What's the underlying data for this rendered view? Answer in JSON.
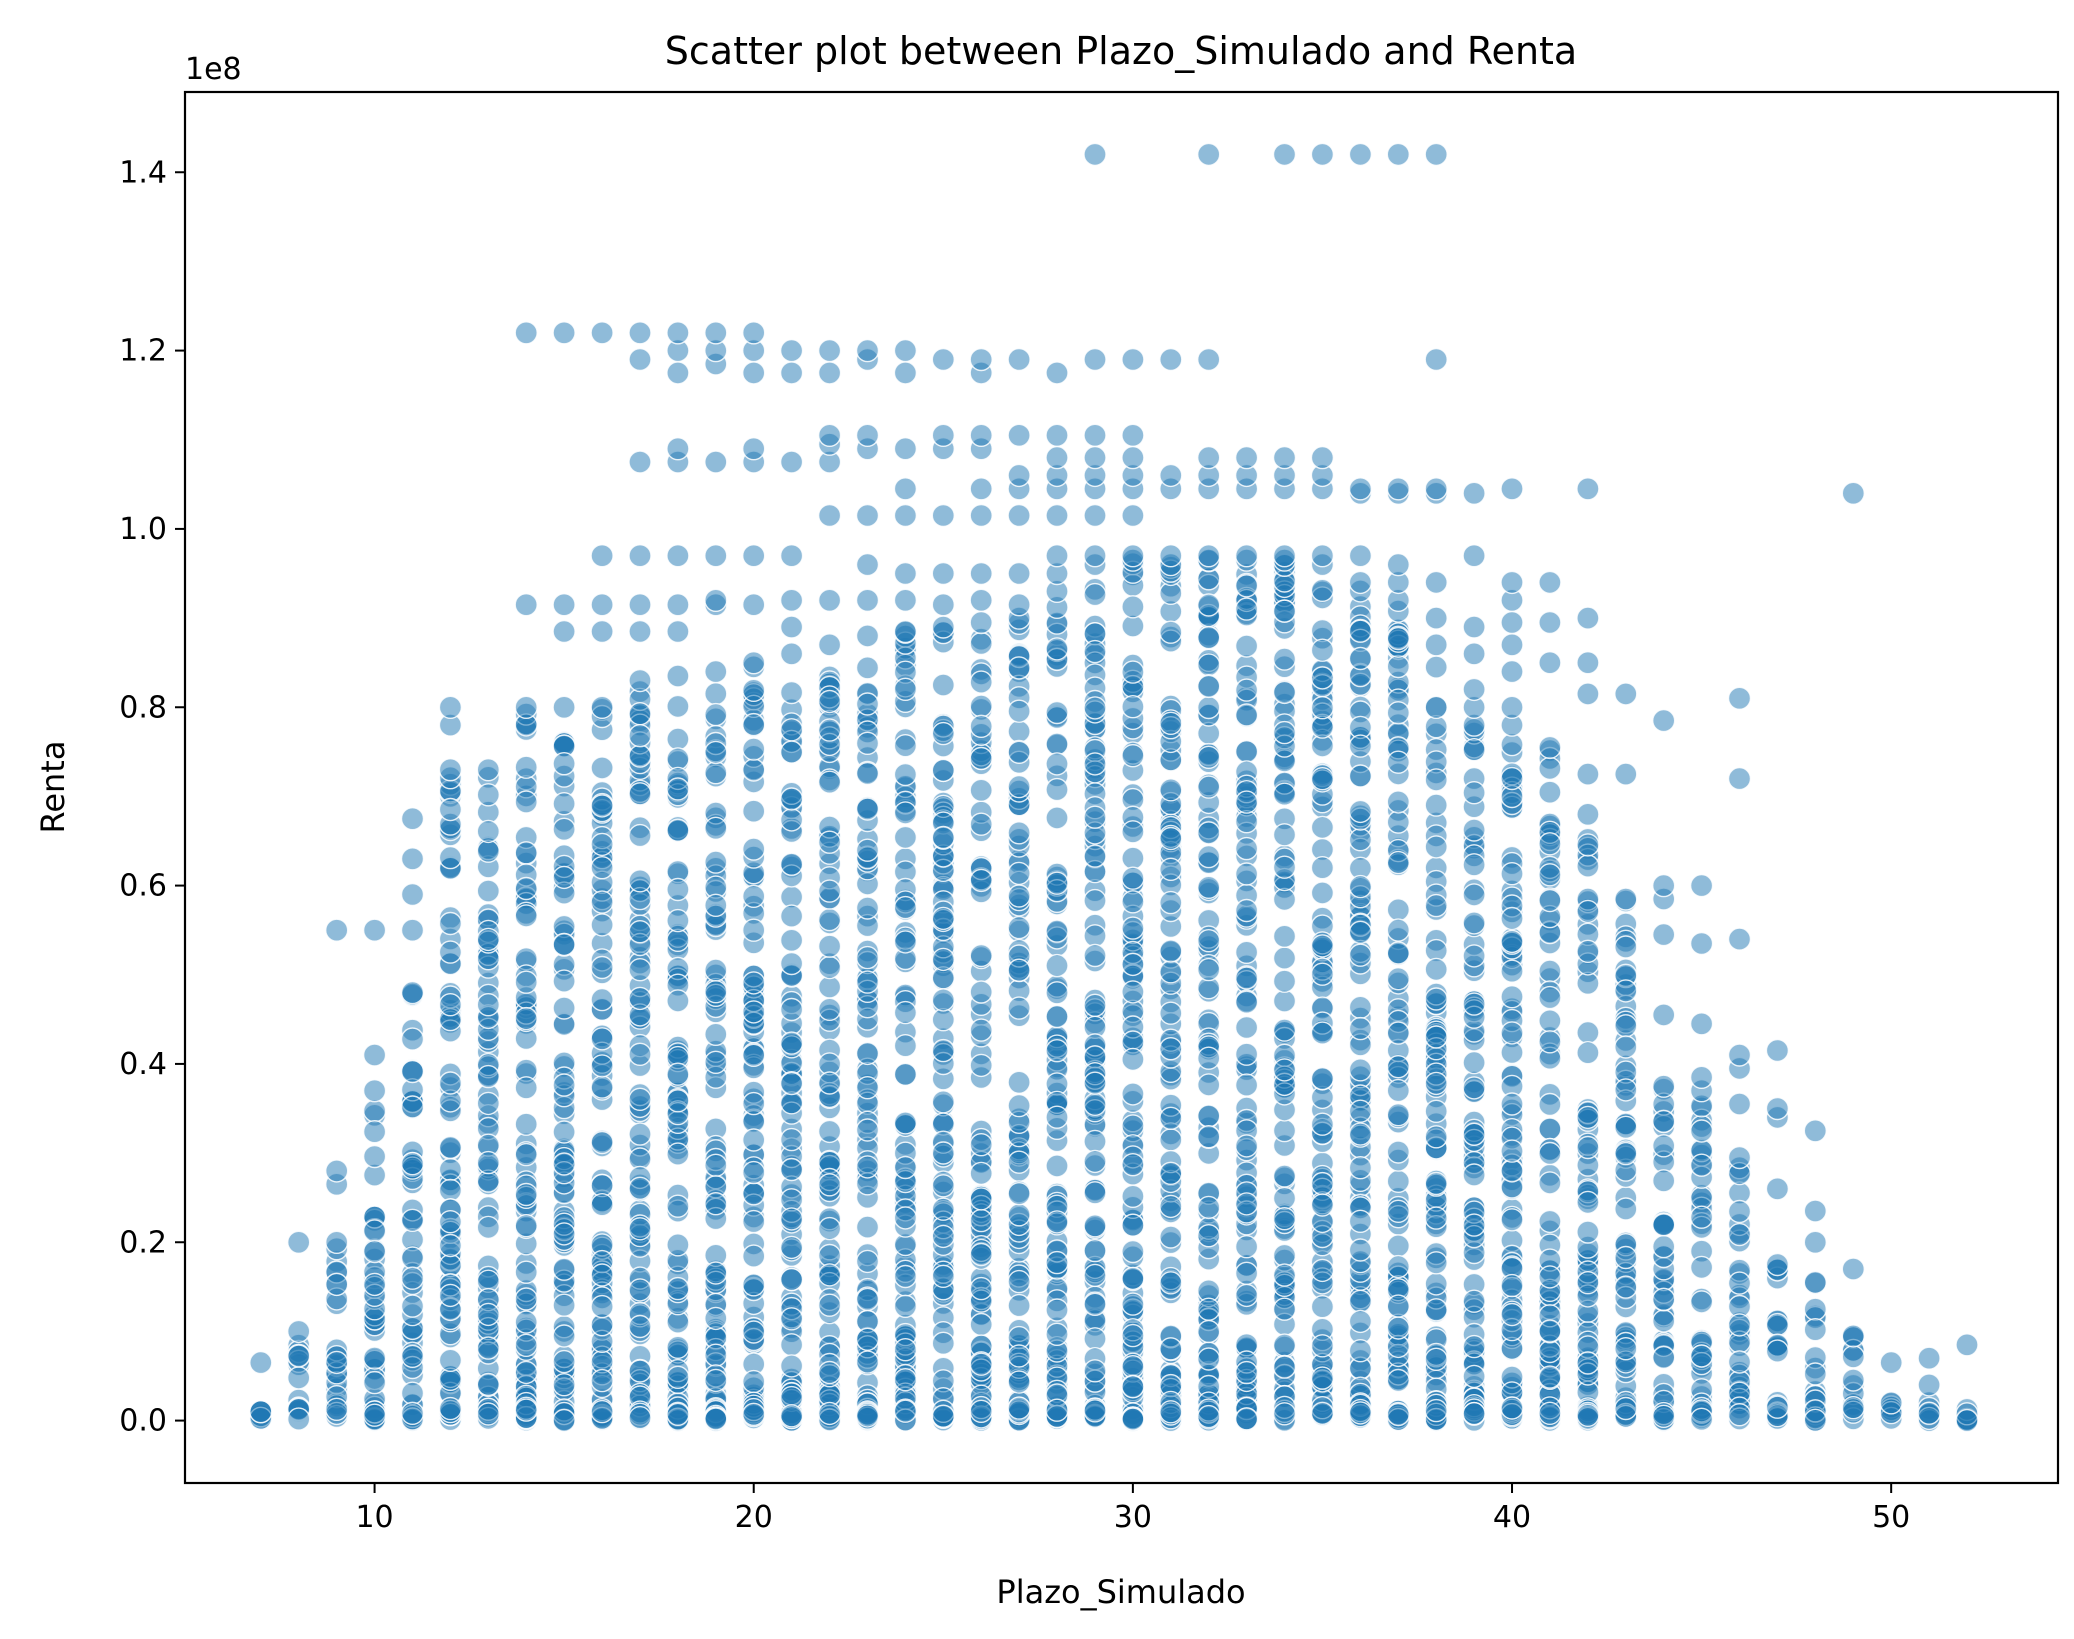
{
  "chart_data": {
    "type": "scatter",
    "title": "Scatter plot between Plazo_Simulado and Renta",
    "xlabel": "Plazo_Simulado",
    "ylabel": "Renta",
    "y_offset_label": "1e8",
    "xlim": [
      5,
      54.4
    ],
    "ylim": [
      -7000000,
      149000000
    ],
    "x_ticks": [
      10,
      20,
      30,
      40,
      50
    ],
    "x_tick_labels": [
      "10",
      "20",
      "30",
      "40",
      "50"
    ],
    "y_ticks": [
      0,
      20000000,
      40000000,
      60000000,
      80000000,
      100000000,
      120000000,
      140000000
    ],
    "y_tick_labels": [
      "0.0",
      "0.2",
      "0.4",
      "0.6",
      "0.8",
      "1.0",
      "1.2",
      "1.4"
    ],
    "grid": false,
    "legend": "none",
    "marker_color": "#1f77b4",
    "marker_alpha": 0.5,
    "columns": [
      {
        "x": 7,
        "max": 1000000,
        "outliers": [
          6500000
        ]
      },
      {
        "x": 8,
        "max": 10000000,
        "outliers": [
          20000000
        ]
      },
      {
        "x": 9,
        "max": 20000000,
        "outliers": [
          26500000,
          28000000,
          55000000
        ]
      },
      {
        "x": 10,
        "max": 37000000,
        "outliers": [
          41000000,
          55000000
        ]
      },
      {
        "x": 11,
        "max": 48000000,
        "outliers": [
          55000000,
          59000000,
          63000000,
          67500000
        ]
      },
      {
        "x": 12,
        "max": 73000000,
        "outliers": [
          78000000,
          80000000
        ]
      },
      {
        "x": 13,
        "max": 73000000,
        "outliers": []
      },
      {
        "x": 14,
        "max": 80000000,
        "outliers": [
          91500000,
          122000000
        ]
      },
      {
        "x": 15,
        "max": 80000000,
        "outliers": [
          88500000,
          91500000,
          122000000
        ]
      },
      {
        "x": 16,
        "max": 80000000,
        "outliers": [
          88500000,
          91500000,
          97000000,
          122000000
        ]
      },
      {
        "x": 17,
        "max": 83000000,
        "outliers": [
          88500000,
          91500000,
          97000000,
          107500000,
          119000000,
          122000000
        ]
      },
      {
        "x": 18,
        "max": 83500000,
        "outliers": [
          88500000,
          91500000,
          97000000,
          107500000,
          109000000,
          117500000,
          120000000,
          122000000
        ]
      },
      {
        "x": 19,
        "max": 84000000,
        "outliers": [
          91500000,
          92000000,
          97000000,
          107500000,
          118500000,
          120000000,
          122000000
        ]
      },
      {
        "x": 20,
        "max": 85000000,
        "outliers": [
          91500000,
          97000000,
          107500000,
          109000000,
          117500000,
          120000000,
          122000000
        ]
      },
      {
        "x": 21,
        "max": 86000000,
        "outliers": [
          89000000,
          92000000,
          97000000,
          107500000,
          117500000,
          120000000
        ]
      },
      {
        "x": 22,
        "max": 87000000,
        "outliers": [
          92000000,
          101500000,
          107500000,
          109500000,
          110500000,
          117500000,
          120000000
        ]
      },
      {
        "x": 23,
        "max": 88000000,
        "outliers": [
          92000000,
          96000000,
          101500000,
          109000000,
          110500000,
          119000000,
          120000000
        ]
      },
      {
        "x": 24,
        "max": 88500000,
        "outliers": [
          92000000,
          95000000,
          101500000,
          104500000,
          109000000,
          117500000,
          120000000
        ]
      },
      {
        "x": 25,
        "max": 89000000,
        "outliers": [
          91500000,
          95000000,
          101500000,
          109000000,
          110500000,
          119000000
        ]
      },
      {
        "x": 26,
        "max": 89500000,
        "outliers": [
          92000000,
          95000000,
          101500000,
          104500000,
          109000000,
          110500000,
          117500000,
          119000000
        ]
      },
      {
        "x": 27,
        "max": 90000000,
        "outliers": [
          91500000,
          95000000,
          101500000,
          104500000,
          106000000,
          110500000,
          119000000
        ]
      },
      {
        "x": 28,
        "max": 93000000,
        "outliers": [
          95000000,
          97000000,
          101500000,
          104500000,
          106000000,
          108000000,
          110500000,
          117500000
        ]
      },
      {
        "x": 29,
        "max": 96000000,
        "outliers": [
          97000000,
          101500000,
          104500000,
          106000000,
          108000000,
          110500000,
          119000000,
          142000000
        ]
      },
      {
        "x": 30,
        "max": 96500000,
        "outliers": [
          97000000,
          101500000,
          104500000,
          106000000,
          108000000,
          110500000,
          119000000
        ]
      },
      {
        "x": 31,
        "max": 96000000,
        "outliers": [
          97000000,
          104500000,
          106000000,
          119000000
        ]
      },
      {
        "x": 32,
        "max": 96500000,
        "outliers": [
          97000000,
          104500000,
          106000000,
          108000000,
          119000000,
          142000000
        ]
      },
      {
        "x": 33,
        "max": 96500000,
        "outliers": [
          97000000,
          104500000,
          106000000,
          108000000
        ]
      },
      {
        "x": 34,
        "max": 96500000,
        "outliers": [
          97000000,
          104500000,
          106000000,
          108000000,
          142000000
        ]
      },
      {
        "x": 35,
        "max": 96000000,
        "outliers": [
          97000000,
          104500000,
          106000000,
          108000000,
          142000000
        ]
      },
      {
        "x": 36,
        "max": 94000000,
        "outliers": [
          97000000,
          104000000,
          104500000,
          142000000
        ]
      },
      {
        "x": 37,
        "max": 92000000,
        "outliers": [
          94000000,
          96000000,
          104000000,
          104500000,
          142000000
        ]
      },
      {
        "x": 38,
        "max": 80000000,
        "outliers": [
          84500000,
          87000000,
          90000000,
          94000000,
          104000000,
          104500000,
          119000000,
          142000000
        ]
      },
      {
        "x": 39,
        "max": 78000000,
        "outliers": [
          80000000,
          82000000,
          86000000,
          89000000,
          97000000,
          104000000
        ]
      },
      {
        "x": 40,
        "max": 78000000,
        "outliers": [
          80000000,
          84000000,
          87000000,
          89500000,
          92000000,
          94000000,
          104500000
        ]
      },
      {
        "x": 41,
        "max": 75500000,
        "outliers": [
          85000000,
          89500000,
          94000000
        ]
      },
      {
        "x": 42,
        "max": 68000000,
        "outliers": [
          72500000,
          81500000,
          85000000,
          90000000,
          104500000
        ]
      },
      {
        "x": 43,
        "max": 58500000,
        "outliers": [
          72500000,
          81500000
        ]
      },
      {
        "x": 44,
        "max": 37500000,
        "outliers": [
          45500000,
          54500000,
          58500000,
          60000000,
          78500000
        ]
      },
      {
        "x": 45,
        "max": 37000000,
        "outliers": [
          38500000,
          44500000,
          53500000,
          60000000
        ]
      },
      {
        "x": 46,
        "max": 29500000,
        "outliers": [
          35500000,
          39500000,
          41000000,
          54000000,
          72000000,
          81000000
        ]
      },
      {
        "x": 47,
        "max": 17500000,
        "outliers": [
          26000000,
          34000000,
          35000000,
          41500000
        ]
      },
      {
        "x": 48,
        "max": 15500000,
        "outliers": [
          20000000,
          23500000,
          32500000
        ]
      },
      {
        "x": 49,
        "max": 9500000,
        "outliers": [
          17000000,
          104000000
        ]
      },
      {
        "x": 50,
        "max": 2000000,
        "outliers": [
          6500000
        ]
      },
      {
        "x": 51,
        "max": 4000000,
        "outliers": [
          7000000
        ]
      },
      {
        "x": 52,
        "max": 0,
        "outliers": [
          8500000
        ]
      }
    ]
  }
}
